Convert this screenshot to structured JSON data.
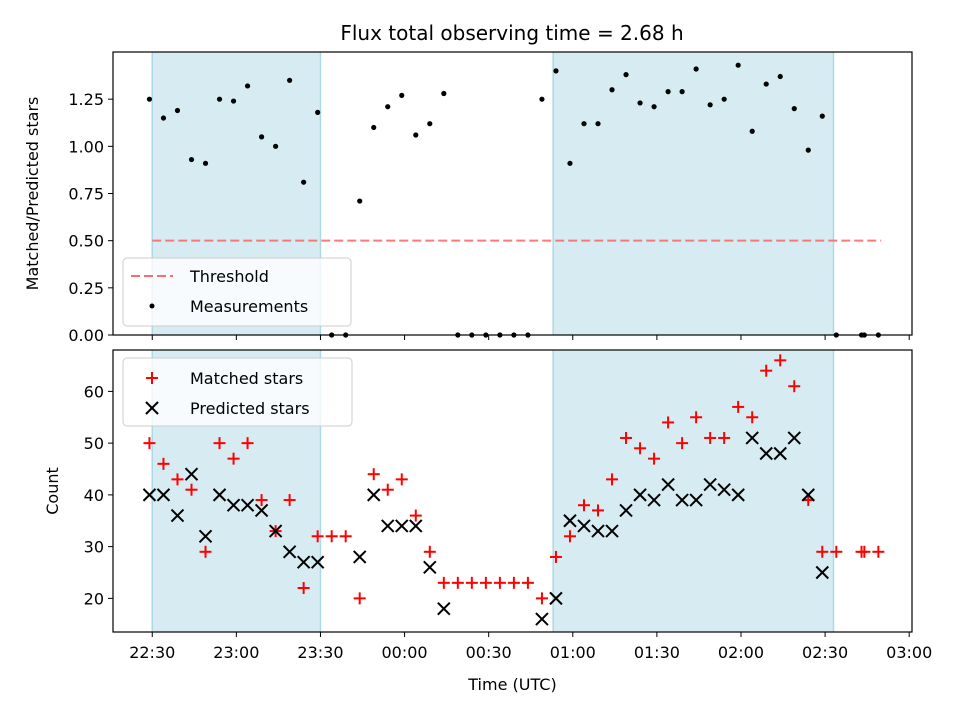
{
  "chart_data": [
    {
      "type": "scatter",
      "title": "Flux total observing time = 2.68 h",
      "xlabel": "",
      "ylabel": "Matched/Predicted stars",
      "ylim": [
        0,
        1.5
      ],
      "yticks": [
        "0.00",
        "0.25",
        "0.50",
        "0.75",
        "1.00",
        "1.25"
      ],
      "shaded_intervals": [
        [
          "22:30",
          "23:30"
        ],
        [
          "00:53",
          "02:33"
        ]
      ],
      "threshold": {
        "name": "Threshold",
        "value": 0.5,
        "x_range": [
          "22:30",
          "02:50"
        ],
        "color": "#ff6b6b"
      },
      "series": [
        {
          "name": "Measurements",
          "color": "#000000",
          "points": [
            [
              "22:29",
              1.25
            ],
            [
              "22:34",
              1.15
            ],
            [
              "22:39",
              1.19
            ],
            [
              "22:44",
              0.93
            ],
            [
              "22:49",
              0.91
            ],
            [
              "22:54",
              1.25
            ],
            [
              "22:59",
              1.24
            ],
            [
              "23:04",
              1.32
            ],
            [
              "23:09",
              1.05
            ],
            [
              "23:14",
              1.0
            ],
            [
              "23:19",
              1.35
            ],
            [
              "23:24",
              0.81
            ],
            [
              "23:29",
              1.18
            ],
            [
              "23:34",
              0.0
            ],
            [
              "23:39",
              0.0
            ],
            [
              "23:44",
              0.71
            ],
            [
              "23:49",
              1.1
            ],
            [
              "23:54",
              1.21
            ],
            [
              "23:59",
              1.27
            ],
            [
              "00:04",
              1.06
            ],
            [
              "00:09",
              1.12
            ],
            [
              "00:14",
              1.28
            ],
            [
              "00:19",
              0.0
            ],
            [
              "00:24",
              0.0
            ],
            [
              "00:29",
              0.0
            ],
            [
              "00:34",
              0.0
            ],
            [
              "00:39",
              0.0
            ],
            [
              "00:44",
              0.0
            ],
            [
              "00:49",
              1.25
            ],
            [
              "00:54",
              1.4
            ],
            [
              "00:59",
              0.91
            ],
            [
              "01:04",
              1.12
            ],
            [
              "01:09",
              1.12
            ],
            [
              "01:14",
              1.3
            ],
            [
              "01:19",
              1.38
            ],
            [
              "01:24",
              1.23
            ],
            [
              "01:29",
              1.21
            ],
            [
              "01:34",
              1.29
            ],
            [
              "01:39",
              1.29
            ],
            [
              "01:44",
              1.41
            ],
            [
              "01:49",
              1.22
            ],
            [
              "01:54",
              1.25
            ],
            [
              "01:59",
              1.43
            ],
            [
              "02:04",
              1.08
            ],
            [
              "02:09",
              1.33
            ],
            [
              "02:14",
              1.37
            ],
            [
              "02:19",
              1.2
            ],
            [
              "02:24",
              0.98
            ],
            [
              "02:29",
              1.16
            ],
            [
              "02:34",
              0.0
            ],
            [
              "02:43",
              0.0
            ],
            [
              "02:44",
              0.0
            ],
            [
              "02:49",
              0.0
            ]
          ]
        }
      ]
    },
    {
      "type": "scatter",
      "title": "",
      "xlabel": "Time (UTC)",
      "ylabel": "Count",
      "ylim": [
        13.5,
        68
      ],
      "yticks": [
        "20",
        "30",
        "40",
        "50",
        "60"
      ],
      "xticks": [
        "22:30",
        "23:00",
        "23:30",
        "00:00",
        "00:30",
        "01:00",
        "01:30",
        "02:00",
        "02:30",
        "03:00"
      ],
      "xlim": [
        "22:16",
        "03:01"
      ],
      "shaded_intervals": [
        [
          "22:30",
          "23:30"
        ],
        [
          "00:53",
          "02:33"
        ]
      ],
      "series": [
        {
          "name": "Matched stars",
          "marker": "plus",
          "color": "#ff0000",
          "points": [
            [
              "22:29",
              50
            ],
            [
              "22:34",
              46
            ],
            [
              "22:39",
              43
            ],
            [
              "22:44",
              41
            ],
            [
              "22:49",
              29
            ],
            [
              "22:54",
              50
            ],
            [
              "22:59",
              47
            ],
            [
              "23:04",
              50
            ],
            [
              "23:09",
              39
            ],
            [
              "23:14",
              33
            ],
            [
              "23:19",
              39
            ],
            [
              "23:24",
              22
            ],
            [
              "23:29",
              32
            ],
            [
              "23:34",
              32
            ],
            [
              "23:39",
              32
            ],
            [
              "23:44",
              20
            ],
            [
              "23:49",
              44
            ],
            [
              "23:54",
              41
            ],
            [
              "23:59",
              43
            ],
            [
              "00:04",
              36
            ],
            [
              "00:09",
              29
            ],
            [
              "00:14",
              23
            ],
            [
              "00:19",
              23
            ],
            [
              "00:24",
              23
            ],
            [
              "00:29",
              23
            ],
            [
              "00:34",
              23
            ],
            [
              "00:39",
              23
            ],
            [
              "00:44",
              23
            ],
            [
              "00:49",
              20
            ],
            [
              "00:54",
              28
            ],
            [
              "00:59",
              32
            ],
            [
              "01:04",
              38
            ],
            [
              "01:09",
              37
            ],
            [
              "01:14",
              43
            ],
            [
              "01:19",
              51
            ],
            [
              "01:24",
              49
            ],
            [
              "01:29",
              47
            ],
            [
              "01:34",
              54
            ],
            [
              "01:39",
              50
            ],
            [
              "01:44",
              55
            ],
            [
              "01:49",
              51
            ],
            [
              "01:54",
              51
            ],
            [
              "01:59",
              57
            ],
            [
              "02:04",
              55
            ],
            [
              "02:09",
              64
            ],
            [
              "02:14",
              66
            ],
            [
              "02:19",
              61
            ],
            [
              "02:24",
              39
            ],
            [
              "02:29",
              29
            ],
            [
              "02:34",
              29
            ],
            [
              "02:43",
              29
            ],
            [
              "02:44",
              29
            ],
            [
              "02:49",
              29
            ]
          ]
        },
        {
          "name": "Predicted stars",
          "marker": "x",
          "color": "#000000",
          "points": [
            [
              "22:29",
              40
            ],
            [
              "22:34",
              40
            ],
            [
              "22:39",
              36
            ],
            [
              "22:44",
              44
            ],
            [
              "22:49",
              32
            ],
            [
              "22:54",
              40
            ],
            [
              "22:59",
              38
            ],
            [
              "23:04",
              38
            ],
            [
              "23:09",
              37
            ],
            [
              "23:14",
              33
            ],
            [
              "23:19",
              29
            ],
            [
              "23:24",
              27
            ],
            [
              "23:29",
              27
            ],
            [
              "23:44",
              28
            ],
            [
              "23:49",
              40
            ],
            [
              "23:54",
              34
            ],
            [
              "23:59",
              34
            ],
            [
              "00:04",
              34
            ],
            [
              "00:09",
              26
            ],
            [
              "00:14",
              18
            ],
            [
              "00:49",
              16
            ],
            [
              "00:54",
              20
            ],
            [
              "00:59",
              35
            ],
            [
              "01:04",
              34
            ],
            [
              "01:09",
              33
            ],
            [
              "01:14",
              33
            ],
            [
              "01:19",
              37
            ],
            [
              "01:24",
              40
            ],
            [
              "01:29",
              39
            ],
            [
              "01:34",
              42
            ],
            [
              "01:39",
              39
            ],
            [
              "01:44",
              39
            ],
            [
              "01:49",
              42
            ],
            [
              "01:54",
              41
            ],
            [
              "01:59",
              40
            ],
            [
              "02:04",
              51
            ],
            [
              "02:09",
              48
            ],
            [
              "02:14",
              48
            ],
            [
              "02:19",
              51
            ],
            [
              "02:24",
              40
            ],
            [
              "02:29",
              25
            ]
          ]
        }
      ]
    }
  ]
}
